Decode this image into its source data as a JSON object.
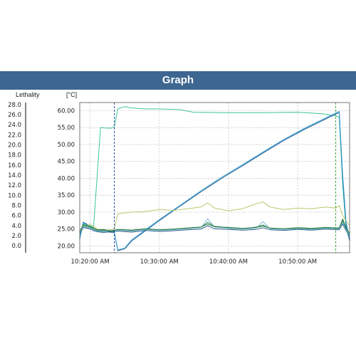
{
  "page": {
    "title": "Graph",
    "lethality_label": "Lethality",
    "temperature_unit_label": "[°C]"
  },
  "colors": {
    "title_bar": "#3d6690",
    "grid": "#c8c8c8",
    "axis": "#555555",
    "cursor_start": "#1a3a8c",
    "cursor_end": "#2f9a2f"
  },
  "chart_data": {
    "type": "line",
    "title": "Graph",
    "xlabel": "",
    "ylabel": "[°C]",
    "y_left_label": "Lethality",
    "grid": true,
    "x_range": [
      "10:18:30",
      "10:57:30"
    ],
    "x_ticks": [
      "10:20:00 AM",
      "10:30:00 AM",
      "10:40:00 AM",
      "10:50:00 AM"
    ],
    "x_tick_times": [
      "10:20:00",
      "10:30:00",
      "10:40:00",
      "10:50:00"
    ],
    "y_right_range": [
      18,
      62.4
    ],
    "y_right_ticks": [
      20.0,
      25.0,
      30.0,
      35.0,
      40.0,
      45.0,
      50.0,
      55.0,
      60.0
    ],
    "y_right_tick_labels": [
      "20.00",
      "25.00",
      "30.00",
      "35.00",
      "40.00",
      "45.00",
      "50.00",
      "55.00",
      "60.00"
    ],
    "y_left_range": [
      -1.4,
      28.4
    ],
    "y_left_ticks": [
      0,
      2,
      4,
      6,
      8,
      10,
      12,
      14,
      16,
      18,
      20,
      22,
      24,
      26,
      28
    ],
    "y_left_tick_labels": [
      "0.0",
      "2.0",
      "4.0",
      "6.0",
      "8.0",
      "10.0",
      "12.0",
      "14.0",
      "16.0",
      "18.0",
      "20.0",
      "22.0",
      "24.0",
      "26.0",
      "28.0"
    ],
    "cursors": [
      {
        "time": "10:23:30",
        "color": "#1a3a8c"
      },
      {
        "time": "10:55:30",
        "color": "#2f9a2f"
      }
    ],
    "series": [
      {
        "color": "#3cc3a0",
        "points": [
          [
            "10:18:30",
            22.5
          ],
          [
            "10:19:00",
            26.5
          ],
          [
            "10:19:30",
            26.0
          ],
          [
            "10:20:00",
            26.0
          ],
          [
            "10:20:30",
            25.5
          ],
          [
            "10:21:30",
            55.0
          ],
          [
            "10:22:00",
            54.9
          ],
          [
            "10:23:00",
            54.8
          ],
          [
            "10:23:30",
            55.2
          ],
          [
            "10:24:00",
            60.5
          ],
          [
            "10:25:00",
            61.2
          ],
          [
            "10:26:00",
            60.8
          ],
          [
            "10:28:00",
            60.5
          ],
          [
            "10:30:00",
            60.5
          ],
          [
            "10:33:00",
            60.3
          ],
          [
            "10:35:00",
            59.5
          ],
          [
            "10:40:00",
            59.4
          ],
          [
            "10:45:00",
            59.4
          ],
          [
            "10:50:00",
            59.5
          ],
          [
            "10:52:00",
            59.3
          ],
          [
            "10:54:00",
            59.0
          ],
          [
            "10:55:00",
            58.6
          ],
          [
            "10:55:30",
            58.5
          ],
          [
            "10:56:00",
            58.0
          ],
          [
            "10:56:30",
            38.0
          ],
          [
            "10:57:00",
            25.0
          ],
          [
            "10:57:30",
            22.0
          ]
        ]
      },
      {
        "color": "#1a5a8c",
        "points": [
          [
            "10:18:30",
            22.0
          ],
          [
            "10:19:00",
            27.0
          ],
          [
            "10:19:30",
            26.5
          ],
          [
            "10:20:30",
            24.5
          ],
          [
            "10:22:00",
            24.2
          ],
          [
            "10:23:30",
            24.0
          ],
          [
            "10:24:00",
            18.6
          ],
          [
            "10:25:00",
            19.2
          ],
          [
            "10:26:00",
            21.5
          ],
          [
            "10:28:00",
            24.5
          ],
          [
            "10:30:00",
            27.5
          ],
          [
            "10:33:00",
            31.8
          ],
          [
            "10:36:00",
            36.0
          ],
          [
            "10:39:00",
            40.0
          ],
          [
            "10:42:00",
            43.7
          ],
          [
            "10:45:00",
            47.5
          ],
          [
            "10:48:00",
            51.2
          ],
          [
            "10:51:00",
            54.5
          ],
          [
            "10:53:00",
            56.5
          ],
          [
            "10:55:00",
            58.5
          ],
          [
            "10:55:30",
            59.0
          ],
          [
            "10:56:00",
            59.5
          ],
          [
            "10:56:30",
            40.0
          ],
          [
            "10:57:00",
            26.0
          ],
          [
            "10:57:30",
            21.5
          ]
        ]
      },
      {
        "color": "#3aa0d8",
        "points": [
          [
            "10:18:30",
            22.2
          ],
          [
            "10:19:00",
            26.8
          ],
          [
            "10:19:30",
            26.3
          ],
          [
            "10:20:30",
            24.8
          ],
          [
            "10:22:00",
            24.4
          ],
          [
            "10:23:30",
            24.2
          ],
          [
            "10:24:00",
            18.8
          ],
          [
            "10:25:00",
            19.4
          ],
          [
            "10:26:00",
            21.8
          ],
          [
            "10:28:00",
            24.8
          ],
          [
            "10:30:00",
            27.8
          ],
          [
            "10:33:00",
            32.0
          ],
          [
            "10:36:00",
            36.3
          ],
          [
            "10:39:00",
            40.3
          ],
          [
            "10:42:00",
            44.0
          ],
          [
            "10:45:00",
            47.8
          ],
          [
            "10:48:00",
            51.5
          ],
          [
            "10:51:00",
            54.8
          ],
          [
            "10:53:00",
            56.8
          ],
          [
            "10:55:00",
            58.8
          ],
          [
            "10:55:30",
            59.3
          ],
          [
            "10:56:00",
            59.8
          ],
          [
            "10:56:30",
            41.0
          ],
          [
            "10:57:00",
            27.0
          ],
          [
            "10:57:30",
            22.0
          ]
        ]
      },
      {
        "color": "#b9c86e",
        "points": [
          [
            "10:18:30",
            24.0
          ],
          [
            "10:19:00",
            25.5
          ],
          [
            "10:20:00",
            26.5
          ],
          [
            "10:21:00",
            25.0
          ],
          [
            "10:22:00",
            24.5
          ],
          [
            "10:23:30",
            25.0
          ],
          [
            "10:24:00",
            29.5
          ],
          [
            "10:26:00",
            30.0
          ],
          [
            "10:28:00",
            30.2
          ],
          [
            "10:30:00",
            30.8
          ],
          [
            "10:32:00",
            30.5
          ],
          [
            "10:34:00",
            31.0
          ],
          [
            "10:36:00",
            31.5
          ],
          [
            "10:37:00",
            32.7
          ],
          [
            "10:38:00",
            31.2
          ],
          [
            "10:40:00",
            30.4
          ],
          [
            "10:42:00",
            31.0
          ],
          [
            "10:44:00",
            32.5
          ],
          [
            "10:45:00",
            33.0
          ],
          [
            "10:46:00",
            31.5
          ],
          [
            "10:48:00",
            30.8
          ],
          [
            "10:50:00",
            31.2
          ],
          [
            "10:52:00",
            31.0
          ],
          [
            "10:54:00",
            31.5
          ],
          [
            "10:55:30",
            31.2
          ],
          [
            "10:56:00",
            32.0
          ],
          [
            "10:56:30",
            29.0
          ],
          [
            "10:57:30",
            26.0
          ]
        ]
      },
      {
        "color": "#3a8f5a",
        "points": [
          [
            "10:18:30",
            24.0
          ],
          [
            "10:19:00",
            26.0
          ],
          [
            "10:20:00",
            25.5
          ],
          [
            "10:21:00",
            24.5
          ],
          [
            "10:22:00",
            24.7
          ],
          [
            "10:23:00",
            24.2
          ],
          [
            "10:24:00",
            24.8
          ],
          [
            "10:26:00",
            24.5
          ],
          [
            "10:28:00",
            25.0
          ],
          [
            "10:30:00",
            24.6
          ],
          [
            "10:32:00",
            24.9
          ],
          [
            "10:34:00",
            25.2
          ],
          [
            "10:36:00",
            25.5
          ],
          [
            "10:37:00",
            27.0
          ],
          [
            "10:38:00",
            25.8
          ],
          [
            "10:40:00",
            25.4
          ],
          [
            "10:42:00",
            25.0
          ],
          [
            "10:44:00",
            25.6
          ],
          [
            "10:45:00",
            26.2
          ],
          [
            "10:46:00",
            25.2
          ],
          [
            "10:48:00",
            25.0
          ],
          [
            "10:50:00",
            25.3
          ],
          [
            "10:52:00",
            25.0
          ],
          [
            "10:54:00",
            25.4
          ],
          [
            "10:56:00",
            25.2
          ],
          [
            "10:56:30",
            27.5
          ],
          [
            "10:57:00",
            25.0
          ],
          [
            "10:57:30",
            23.5
          ]
        ]
      },
      {
        "color": "#2e5e8a",
        "points": [
          [
            "10:18:30",
            23.5
          ],
          [
            "10:19:00",
            25.5
          ],
          [
            "10:20:00",
            25.0
          ],
          [
            "10:21:00",
            24.2
          ],
          [
            "10:22:00",
            24.0
          ],
          [
            "10:23:00",
            24.3
          ],
          [
            "10:24:00",
            24.4
          ],
          [
            "10:26:00",
            24.1
          ],
          [
            "10:28:00",
            24.6
          ],
          [
            "10:30:00",
            24.3
          ],
          [
            "10:32:00",
            24.5
          ],
          [
            "10:34:00",
            24.8
          ],
          [
            "10:36:00",
            25.0
          ],
          [
            "10:37:00",
            26.0
          ],
          [
            "10:38:00",
            25.1
          ],
          [
            "10:40:00",
            24.9
          ],
          [
            "10:42:00",
            24.7
          ],
          [
            "10:44:00",
            24.9
          ],
          [
            "10:45:00",
            25.4
          ],
          [
            "10:46:00",
            24.8
          ],
          [
            "10:48:00",
            24.6
          ],
          [
            "10:50:00",
            24.9
          ],
          [
            "10:52:00",
            24.7
          ],
          [
            "10:54:00",
            25.0
          ],
          [
            "10:56:00",
            24.8
          ],
          [
            "10:56:30",
            26.5
          ],
          [
            "10:57:00",
            24.5
          ],
          [
            "10:57:30",
            23.0
          ]
        ]
      },
      {
        "color": "#7ab8d8",
        "points": [
          [
            "10:18:30",
            23.8
          ],
          [
            "10:19:00",
            25.8
          ],
          [
            "10:20:00",
            25.2
          ],
          [
            "10:21:00",
            24.4
          ],
          [
            "10:22:00",
            24.3
          ],
          [
            "10:23:00",
            24.6
          ],
          [
            "10:24:00",
            24.7
          ],
          [
            "10:26:00",
            24.4
          ],
          [
            "10:28:00",
            24.9
          ],
          [
            "10:30:00",
            24.6
          ],
          [
            "10:32:00",
            24.8
          ],
          [
            "10:34:00",
            25.1
          ],
          [
            "10:36:00",
            25.4
          ],
          [
            "10:37:00",
            28.0
          ],
          [
            "10:38:00",
            25.6
          ],
          [
            "10:40:00",
            25.2
          ],
          [
            "10:42:00",
            25.0
          ],
          [
            "10:44:00",
            25.3
          ],
          [
            "10:45:00",
            27.2
          ],
          [
            "10:46:00",
            25.1
          ],
          [
            "10:48:00",
            24.9
          ],
          [
            "10:50:00",
            25.1
          ],
          [
            "10:52:00",
            24.9
          ],
          [
            "10:54:00",
            25.2
          ],
          [
            "10:56:00",
            25.0
          ],
          [
            "10:56:30",
            27.0
          ],
          [
            "10:57:00",
            24.8
          ],
          [
            "10:57:30",
            23.2
          ]
        ]
      },
      {
        "color": "#1f7a3a",
        "points": [
          [
            "10:18:30",
            24.2
          ],
          [
            "10:19:00",
            26.3
          ],
          [
            "10:20:00",
            25.8
          ],
          [
            "10:21:00",
            24.8
          ],
          [
            "10:22:00",
            24.9
          ],
          [
            "10:23:00",
            24.4
          ],
          [
            "10:24:00",
            24.9
          ],
          [
            "10:26:00",
            24.7
          ],
          [
            "10:28:00",
            25.1
          ],
          [
            "10:30:00",
            24.8
          ],
          [
            "10:32:00",
            25.0
          ],
          [
            "10:34:00",
            25.3
          ],
          [
            "10:36:00",
            25.6
          ],
          [
            "10:37:00",
            26.5
          ],
          [
            "10:38:00",
            25.7
          ],
          [
            "10:40:00",
            25.5
          ],
          [
            "10:42:00",
            25.2
          ],
          [
            "10:44:00",
            25.5
          ],
          [
            "10:45:00",
            25.9
          ],
          [
            "10:46:00",
            25.3
          ],
          [
            "10:48:00",
            25.1
          ],
          [
            "10:50:00",
            25.4
          ],
          [
            "10:52:00",
            25.2
          ],
          [
            "10:54:00",
            25.5
          ],
          [
            "10:56:00",
            25.3
          ],
          [
            "10:56:30",
            28.0
          ],
          [
            "10:57:00",
            25.2
          ],
          [
            "10:57:30",
            23.8
          ]
        ]
      }
    ]
  }
}
